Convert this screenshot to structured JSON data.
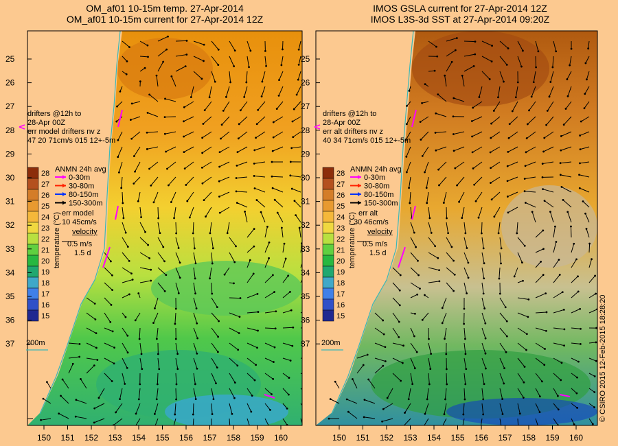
{
  "titles": {
    "left_line1": "OM_af01 10-15m temp. 27-Apr-2014",
    "left_line2": "OM_af01 10-15m current for 27-Apr-2014 12Z",
    "right_line1": "IMOS GSLA current for 27-Apr-2014 12Z",
    "right_line2": "IMOS L3S-3d SST at 27-Apr-2014 09:20Z"
  },
  "lat_labels": [
    "25",
    "26",
    "27",
    "28",
    "29",
    "30",
    "31",
    "32",
    "33",
    "34",
    "35",
    "36",
    "37"
  ],
  "lon_labels": [
    "150",
    "151",
    "152",
    "153",
    "154",
    "155",
    "156",
    "157",
    "158",
    "159",
    "160"
  ],
  "left_panel": {
    "drifters_1": "drifters @12h to",
    "drifters_2": "28-Apr 00Z",
    "drifters_3": "err model drifters nv z",
    "drifters_4": "47   20   71cm/s 015 12+-5m",
    "anmn_title": "ANMN 24h avg",
    "err_label": "err model",
    "err_value": "10 45cm/s",
    "velocity": "velocity",
    "scale_ms": "0.5 m/s",
    "scale_d": "1.5 d",
    "isobath": "200m"
  },
  "right_panel": {
    "drifters_1": "drifters @12h to",
    "drifters_2": "28-Apr 00Z",
    "drifters_3": "err alt drifters nv z",
    "drifters_4": "40 34 71cm/s 015 12+-5m",
    "anmn_title": "ANMN 24h avg",
    "err_label": "err alt",
    "err_value": "30 46cm/s",
    "velocity": "velocity",
    "scale_ms": "0.5 m/s",
    "scale_d": "1.5 d",
    "isobath": "200m"
  },
  "depth_legend": [
    {
      "label": "0-30m",
      "color": "#ff00ff"
    },
    {
      "label": "30-80m",
      "color": "#ff2000"
    },
    {
      "label": "80-150m",
      "color": "#0030ff"
    },
    {
      "label": "150-300m",
      "color": "#000000"
    }
  ],
  "colorbar": {
    "axis_label": "temperature (°C)",
    "ticks": [
      "28",
      "27",
      "26",
      "25",
      "24",
      "23",
      "22",
      "21",
      "20",
      "19",
      "18",
      "17",
      "16",
      "15"
    ],
    "colors": [
      "#8c2d0a",
      "#b4501e",
      "#d47d28",
      "#e89a30",
      "#f5b83a",
      "#f0d840",
      "#b8e040",
      "#60d040",
      "#28b840",
      "#20a870",
      "#40a8c8",
      "#4080e8",
      "#3050c8",
      "#202890"
    ]
  },
  "copyright": "© CSIRO 2015   12-Feb-2015 18:28:20"
}
